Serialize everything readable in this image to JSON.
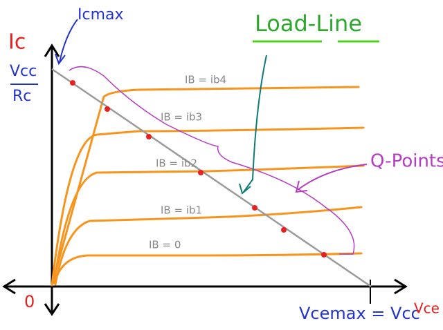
{
  "axis_labels": {
    "y": "Ic",
    "x": "Vce",
    "origin": "0"
  },
  "annotations": {
    "ic_max": "Icmax",
    "vcc": "Vcc",
    "rc": "Rc",
    "load_line": "Load-Line",
    "q_points": "Q-Points",
    "vce_max": "Vcemax = Vcc"
  },
  "curves": [
    {
      "label": "IB = ib4"
    },
    {
      "label": "IB = ib3"
    },
    {
      "label": "IB = ib2"
    },
    {
      "label": "IB = ib1"
    },
    {
      "label": "IB = 0"
    }
  ]
}
